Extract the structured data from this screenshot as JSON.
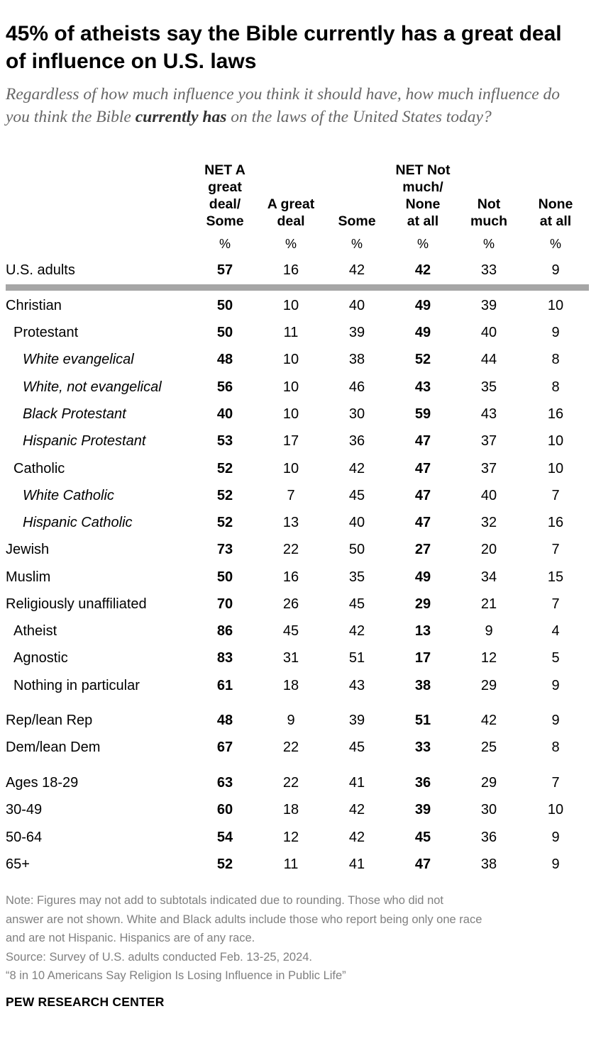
{
  "title": "45% of atheists say the Bible currently has a great deal of influence on U.S. laws",
  "subtitle": {
    "before": "Regardless of how much influence you think it should have, how much influence do you think the Bible ",
    "emphasis": "currently has",
    "after": " on the laws of the United States today?"
  },
  "chart_data": {
    "type": "table",
    "columns": [
      {
        "label": [
          "NET A",
          "great",
          "deal/",
          "Some"
        ],
        "unit": "%",
        "bold": true
      },
      {
        "label": [
          "A great",
          "deal"
        ],
        "unit": "%",
        "bold": false
      },
      {
        "label": [
          "Some"
        ],
        "unit": "%",
        "bold": false
      },
      {
        "label": [
          "NET Not",
          "much/",
          "None",
          "at all"
        ],
        "unit": "%",
        "bold": true
      },
      {
        "label": [
          "Not",
          "much"
        ],
        "unit": "%",
        "bold": false
      },
      {
        "label": [
          "None",
          "at all"
        ],
        "unit": "%",
        "bold": false
      }
    ],
    "rows": [
      {
        "label": "U.S. adults",
        "level": 0,
        "values": [
          "57",
          "16",
          "42",
          "42",
          "33",
          "9"
        ]
      },
      {
        "label": "Christian",
        "level": 0,
        "values": [
          "50",
          "10",
          "40",
          "49",
          "39",
          "10"
        ]
      },
      {
        "label": "Protestant",
        "level": 1,
        "values": [
          "50",
          "11",
          "39",
          "49",
          "40",
          "9"
        ]
      },
      {
        "label": "White evangelical",
        "level": 2,
        "values": [
          "48",
          "10",
          "38",
          "52",
          "44",
          "8"
        ]
      },
      {
        "label": "White, not evangelical",
        "level": 2,
        "values": [
          "56",
          "10",
          "46",
          "43",
          "35",
          "8"
        ]
      },
      {
        "label": "Black Protestant",
        "level": 2,
        "values": [
          "40",
          "10",
          "30",
          "59",
          "43",
          "16"
        ]
      },
      {
        "label": "Hispanic Protestant",
        "level": 2,
        "values": [
          "53",
          "17",
          "36",
          "47",
          "37",
          "10"
        ]
      },
      {
        "label": "Catholic",
        "level": 1,
        "values": [
          "52",
          "10",
          "42",
          "47",
          "37",
          "10"
        ]
      },
      {
        "label": "White Catholic",
        "level": 2,
        "values": [
          "52",
          "7",
          "45",
          "47",
          "40",
          "7"
        ]
      },
      {
        "label": "Hispanic Catholic",
        "level": 2,
        "values": [
          "52",
          "13",
          "40",
          "47",
          "32",
          "16"
        ]
      },
      {
        "label": "Jewish",
        "level": 0,
        "values": [
          "73",
          "22",
          "50",
          "27",
          "20",
          "7"
        ]
      },
      {
        "label": "Muslim",
        "level": 0,
        "values": [
          "50",
          "16",
          "35",
          "49",
          "34",
          "15"
        ]
      },
      {
        "label": "Religiously unaffiliated",
        "level": 0,
        "values": [
          "70",
          "26",
          "45",
          "29",
          "21",
          "7"
        ]
      },
      {
        "label": "Atheist",
        "level": 1,
        "values": [
          "86",
          "45",
          "42",
          "13",
          "9",
          "4"
        ]
      },
      {
        "label": "Agnostic",
        "level": 1,
        "values": [
          "83",
          "31",
          "51",
          "17",
          "12",
          "5"
        ]
      },
      {
        "label": "Nothing in particular",
        "level": 1,
        "values": [
          "61",
          "18",
          "43",
          "38",
          "29",
          "9"
        ]
      },
      {
        "label": "Rep/lean Rep",
        "level": 0,
        "values": [
          "48",
          "9",
          "39",
          "51",
          "42",
          "9"
        ]
      },
      {
        "label": "Dem/lean Dem",
        "level": 0,
        "values": [
          "67",
          "22",
          "45",
          "33",
          "25",
          "8"
        ]
      },
      {
        "label": "Ages 18-29",
        "level": 0,
        "values": [
          "63",
          "22",
          "41",
          "36",
          "29",
          "7"
        ]
      },
      {
        "label": "30-49",
        "level": 0,
        "values": [
          "60",
          "18",
          "42",
          "39",
          "30",
          "10"
        ]
      },
      {
        "label": "50-64",
        "level": 0,
        "values": [
          "54",
          "12",
          "42",
          "45",
          "36",
          "9"
        ]
      },
      {
        "label": "65+",
        "level": 0,
        "values": [
          "52",
          "11",
          "41",
          "47",
          "38",
          "9"
        ]
      }
    ]
  },
  "notes": [
    "Note: Figures may not add to subtotals indicated due to rounding. Those who did not",
    "answer are not shown. White and Black adults include those who report being only one race",
    "and are not Hispanic. Hispanics are of any race.",
    "Source: Survey of U.S. adults conducted Feb. 13-25, 2024.",
    "“8 in 10 Americans Say Religion Is Losing Influence in Public Life”"
  ],
  "brand": "PEW RESEARCH CENTER",
  "colors": {
    "separator": "#a6a6a6",
    "subtitle": "#666666",
    "notes": "#808080"
  }
}
